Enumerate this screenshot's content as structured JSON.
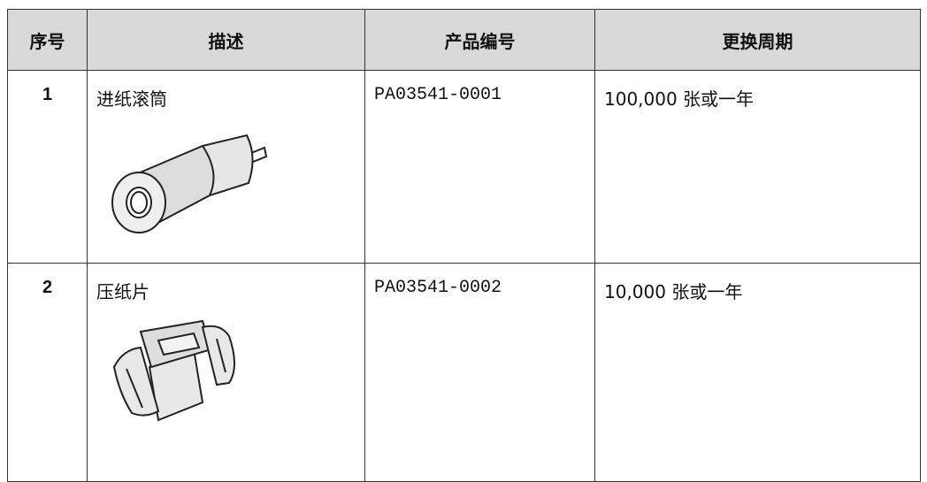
{
  "table": {
    "columns": [
      "序号",
      "描述",
      "产品编号",
      "更换周期"
    ],
    "rows": [
      [
        "1",
        "进纸滚筒",
        "PA03541-0001",
        "100,000 张或一年"
      ],
      [
        "2",
        "压纸片",
        "PA03541-0002",
        "10,000 张或一年"
      ]
    ]
  }
}
